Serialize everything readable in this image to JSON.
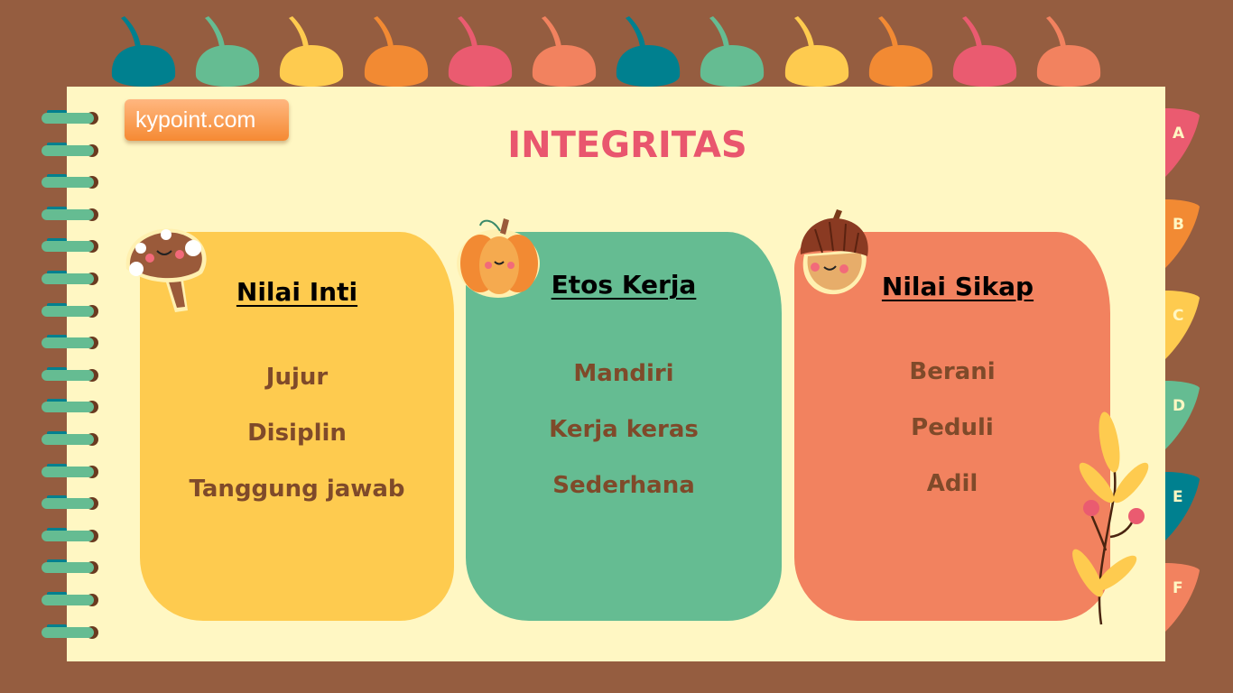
{
  "brand": "kypoint.com",
  "title": "INTEGRITAS",
  "colors": {
    "background": "#955d40",
    "paper": "#fff7c3",
    "title": "#e9566e",
    "item_text": "#7f4a2a",
    "palette": [
      "#00808f",
      "#65bc92",
      "#fecb4f",
      "#f28a33",
      "#ea5b70",
      "#f2825f"
    ]
  },
  "cards": [
    {
      "heading": "Nilai Inti",
      "color": "#fecb4f",
      "icon": "mushroom-icon",
      "items": [
        "Jujur",
        "Disiplin",
        "Tanggung jawab"
      ]
    },
    {
      "heading": "Etos Kerja",
      "color": "#65bc92",
      "icon": "pumpkin-icon",
      "items": [
        "Mandiri",
        "Kerja keras",
        "Sederhana"
      ]
    },
    {
      "heading": "Nilai Sikap",
      "color": "#f2825f",
      "icon": "acorn-icon",
      "items": [
        "Berani",
        "Peduli",
        "Adil"
      ]
    }
  ],
  "tabs": [
    {
      "label": "A",
      "color": "#ea5b70"
    },
    {
      "label": "B",
      "color": "#f28a33"
    },
    {
      "label": "C",
      "color": "#fecb4f"
    },
    {
      "label": "D",
      "color": "#65bc92"
    },
    {
      "label": "E",
      "color": "#00808f"
    },
    {
      "label": "F",
      "color": "#f2825f"
    }
  ]
}
